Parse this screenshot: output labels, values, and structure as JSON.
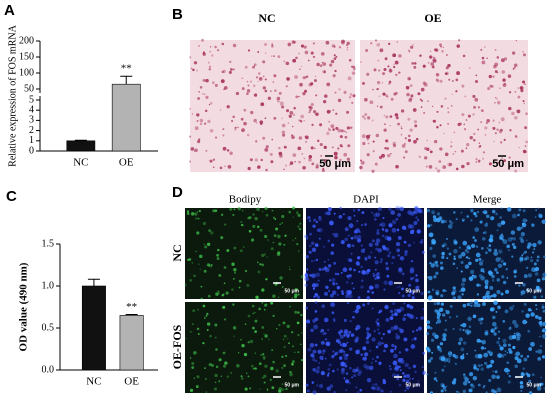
{
  "panels": {
    "a": "A",
    "b": "B",
    "c": "C",
    "d": "D"
  },
  "chart_data": [
    {
      "type": "bar",
      "ylabel": "Relative expression of FOS mRNA",
      "categories": [
        "NC",
        "OE"
      ],
      "values": [
        1,
        65
      ],
      "errors": [
        0.05,
        25
      ],
      "colors": [
        "#111111",
        "#b3b3b3"
      ],
      "annotations": [
        "**"
      ],
      "ylim": [
        0,
        200
      ],
      "ybreak": [
        5,
        50
      ],
      "yticks": [
        0,
        1,
        2,
        3,
        4,
        5,
        50,
        100,
        150,
        200
      ]
    },
    {
      "type": "bar",
      "ylabel": "OD value (490 nm)",
      "categories": [
        "NC",
        "OE"
      ],
      "values": [
        1.0,
        0.65
      ],
      "errors": [
        0.08,
        0.01
      ],
      "colors": [
        "#111111",
        "#b3b3b3"
      ],
      "annotations": [
        "**"
      ],
      "ylim": [
        0,
        1.5
      ],
      "yticks": [
        {
          "value": 0,
          "label": "0.0"
        },
        0.5,
        {
          "value": 1,
          "label": "1.0"
        },
        1.5
      ]
    }
  ],
  "micrographs_b": {
    "columns": [
      "NC",
      "OE"
    ],
    "scale_bars": [
      "50 μm",
      "50 μm"
    ]
  },
  "micrographs_d": {
    "columns": [
      "Bodipy",
      "DAPI",
      "Merge"
    ],
    "rows": [
      "NC",
      "OE-FOS"
    ],
    "scale_bars": [
      "50 μm",
      "50 μm",
      "50 μm",
      "50 μm",
      "50 μm",
      "50 μm"
    ]
  }
}
